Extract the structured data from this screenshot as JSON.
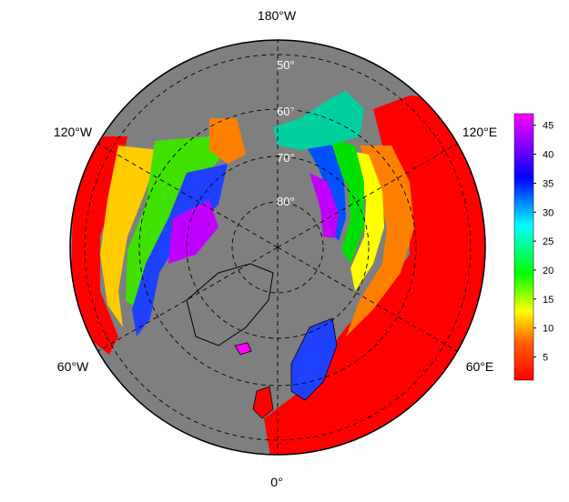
{
  "map": {
    "projection": "north-polar-stereographic",
    "background_color": "#7f7f7f",
    "land_outline_color": "#000000",
    "graticule_style": "dashed",
    "longitude_labels": {
      "top": "180°W",
      "upper_left": "120°W",
      "upper_right": "120°E",
      "lower_left": "60°W",
      "lower_right": "60°E",
      "bottom": "0°"
    },
    "latitude_labels": [
      "50°",
      "60°",
      "70°",
      "80°"
    ]
  },
  "colorbar": {
    "ticks": [
      "5",
      "10",
      "15",
      "20",
      "25",
      "30",
      "35",
      "40",
      "45"
    ],
    "range": [
      1,
      47
    ],
    "colors": [
      "#ff0000",
      "#ff8000",
      "#ffff00",
      "#00ff00",
      "#00ffff",
      "#0000ff",
      "#ff00ff"
    ]
  }
}
